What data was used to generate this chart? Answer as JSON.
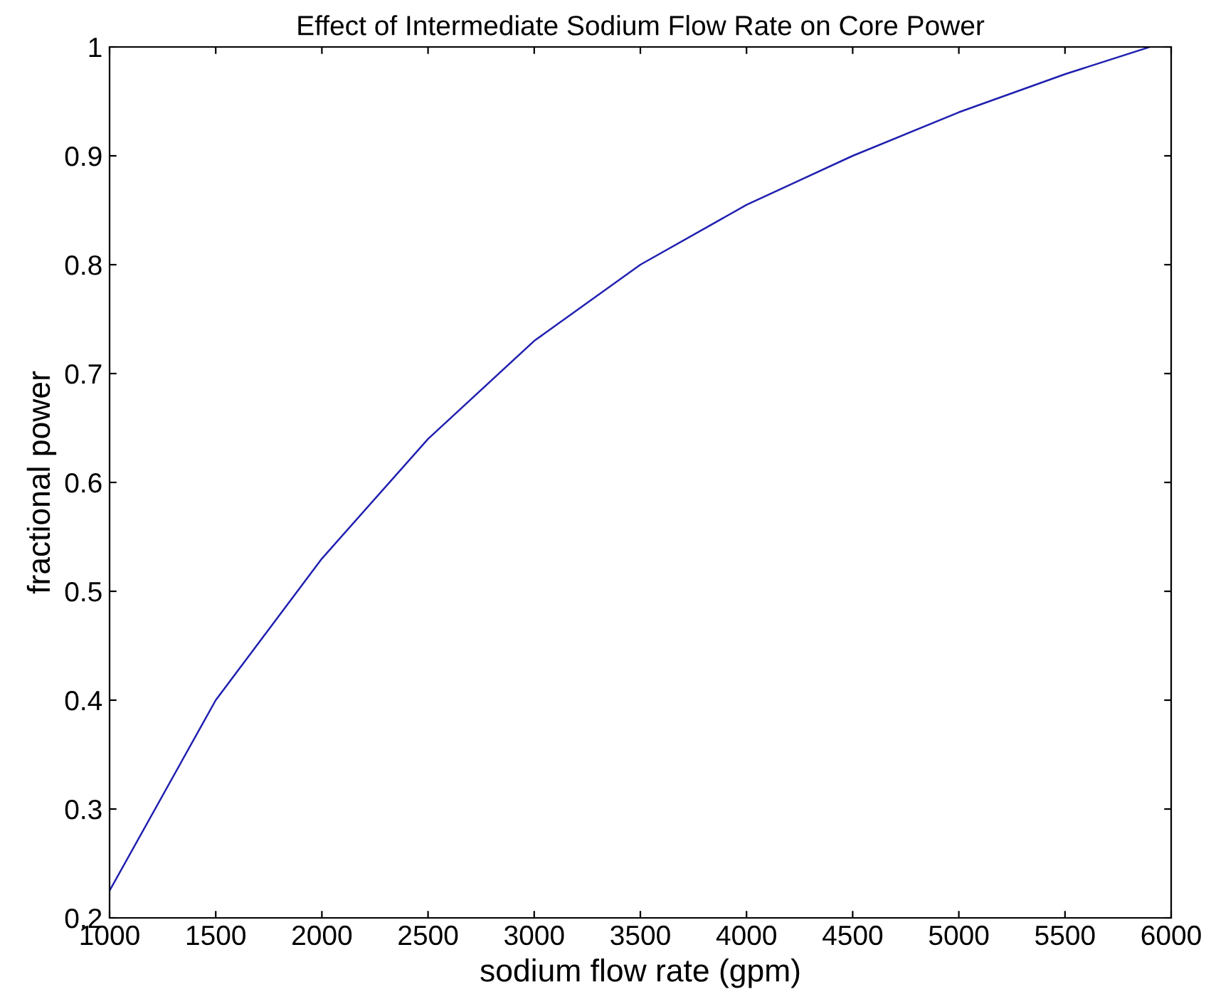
{
  "chart_data": {
    "type": "line",
    "title": "Effect of Intermediate Sodium Flow Rate on Core Power",
    "xlabel": "sodium flow rate (gpm)",
    "ylabel": "fractional power",
    "x": [
      1000,
      1500,
      2000,
      2500,
      3000,
      3500,
      4000,
      4500,
      5000,
      5500,
      5900
    ],
    "series": [
      {
        "color": "#2020b0",
        "values": [
          0.225,
          0.4,
          0.53,
          0.64,
          0.73,
          0.8,
          0.855,
          0.9,
          0.94,
          0.975,
          1.0
        ]
      }
    ],
    "xlim": [
      1000,
      6000
    ],
    "ylim": [
      0.2,
      1
    ],
    "xticks": [
      1000,
      1500,
      2000,
      2500,
      3000,
      3500,
      4000,
      4500,
      5000,
      5500,
      6000
    ],
    "yticks": [
      0.2,
      0.3,
      0.4,
      0.5,
      0.6,
      0.7,
      0.8,
      0.9,
      1
    ],
    "grid": false,
    "legend": false,
    "line_style": "solid",
    "marker": "none"
  }
}
